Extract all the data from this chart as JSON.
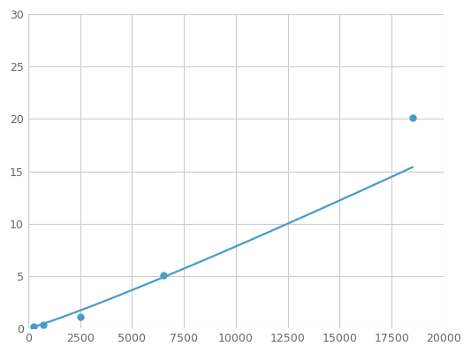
{
  "x": [
    250,
    750,
    2500,
    6500,
    18500
  ],
  "y": [
    0.2,
    0.35,
    1.1,
    5.1,
    20.1
  ],
  "line_color": "#4a9cc7",
  "marker_color": "#4a9cc7",
  "marker_size": 5,
  "line_width": 1.6,
  "xlim": [
    0,
    20000
  ],
  "ylim": [
    0,
    30
  ],
  "xticks": [
    0,
    2500,
    5000,
    7500,
    10000,
    12500,
    15000,
    17500,
    20000
  ],
  "yticks": [
    0,
    5,
    10,
    15,
    20,
    25,
    30
  ],
  "background_color": "#ffffff",
  "grid_color": "#cccccc",
  "tick_label_color": "#666666",
  "tick_fontsize": 9
}
